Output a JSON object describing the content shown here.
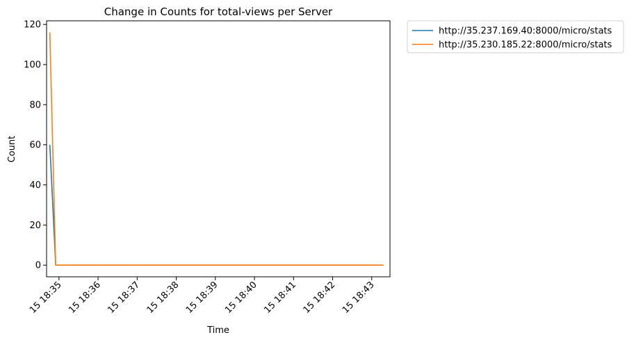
{
  "chart_data": {
    "type": "line",
    "title": "Change in Counts for total-views per Server",
    "xlabel": "Time",
    "ylabel": "Count",
    "x_ticks": [
      "15 18:35",
      "15 18:36",
      "15 18:37",
      "15 18:38",
      "15 18:39",
      "15 18:40",
      "15 18:41",
      "15 18:42",
      "15 18:43"
    ],
    "y_ticks": [
      0,
      20,
      40,
      60,
      80,
      100,
      120
    ],
    "xlim": [
      "15 18:34:41",
      "15 18:43:28"
    ],
    "ylim": [
      -5.8,
      121.8
    ],
    "grid": false,
    "legend_position": "outside-top-right",
    "series": [
      {
        "name": "http://35.237.169.40:8000/micro/stats",
        "color": "#1f77b4",
        "x": [
          "15 18:34:46",
          "15 18:34:55",
          "15 18:43:18"
        ],
        "y": [
          60,
          0,
          0
        ]
      },
      {
        "name": "http://35.230.185.22:8000/micro/stats",
        "color": "#ff7f0e",
        "x": [
          "15 18:34:46",
          "15 18:34:55",
          "15 18:43:18"
        ],
        "y": [
          116,
          0,
          0
        ]
      }
    ]
  }
}
